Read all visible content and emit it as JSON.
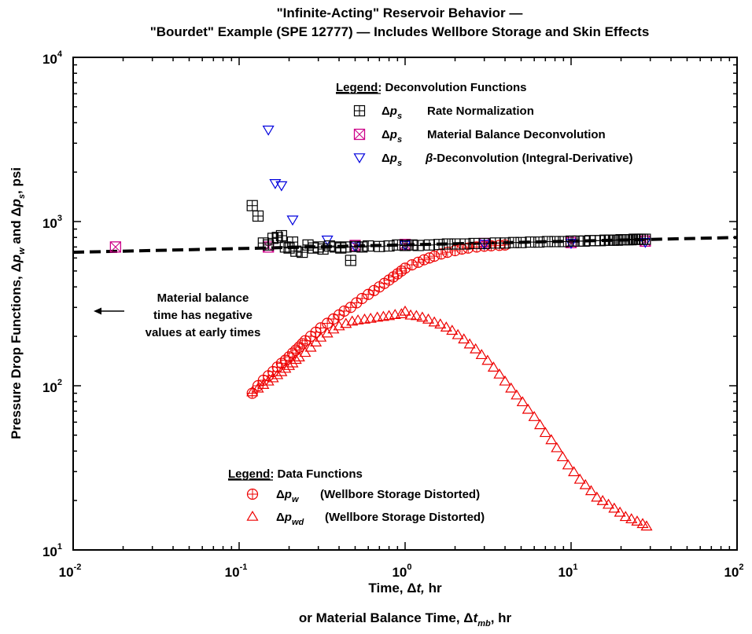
{
  "chart_data": {
    "type": "scatter",
    "title_lines": [
      "\"Infinite-Acting\" Reservoir Behavior —",
      "\"Bourdet\" Example (SPE 12777) — Includes Wellbore Storage and Skin Effects"
    ],
    "xlabel_line1": {
      "before": "Time, ",
      "delta": "Δ",
      "var": "t,",
      "after": " hr"
    },
    "xlabel_line2": {
      "before": "or Material Balance Time,  ",
      "delta": "Δ",
      "var": "t",
      "sub": "mb",
      "after": ", hr"
    },
    "ylabel": {
      "before": "Pressure Drop Functions, ",
      "delta1": "Δ",
      "var1": "p",
      "sub1": "w",
      "mid": " and ",
      "delta2": "Δ",
      "var2": "p",
      "sub2": "s",
      "after": ", psi"
    },
    "x_scale": "log",
    "y_scale": "log",
    "xlim": [
      0.01,
      100
    ],
    "ylim": [
      10,
      10000
    ],
    "x_ticks": [
      {
        "base": "10",
        "exp": "-2"
      },
      {
        "base": "10",
        "exp": "-1"
      },
      {
        "base": "10",
        "exp": "0"
      },
      {
        "base": "10",
        "exp": "1"
      },
      {
        "base": "10",
        "exp": "2"
      }
    ],
    "y_ticks": [
      {
        "base": "10",
        "exp": "1"
      },
      {
        "base": "10",
        "exp": "2"
      },
      {
        "base": "10",
        "exp": "3"
      },
      {
        "base": "10",
        "exp": "4"
      }
    ],
    "grid": false,
    "legend_deconvolution": {
      "heading_underlined": "Legend",
      "heading_rest": ": Deconvolution Functions",
      "entries": [
        {
          "delta": "Δ",
          "var": "p",
          "sub": "s",
          "label": "Rate Normalization",
          "marker": "boxed-plus",
          "color": "#000000"
        },
        {
          "delta": "Δ",
          "var": "p",
          "sub": "s",
          "label": "Material Balance Deconvolution",
          "marker": "boxed-x",
          "color": "#cc0088"
        },
        {
          "delta": "Δ",
          "var": "p",
          "sub": "s",
          "label": "-Deconvolution (Integral-Derivative)",
          "beta": "β",
          "marker": "triangle-down",
          "color": "#0000dd"
        }
      ]
    },
    "legend_data": {
      "heading_underlined": "Legend",
      "heading_rest": ": Data Functions",
      "entries": [
        {
          "delta": "Δ",
          "var": "p",
          "sub": "w",
          "label": "(Wellbore Storage Distorted)",
          "marker": "circle-plus",
          "color": "#ee0000"
        },
        {
          "delta": "Δ",
          "var": "p",
          "sub": "wd",
          "label": "(Wellbore Storage Distorted)",
          "marker": "triangle-up",
          "color": "#ee0000"
        }
      ]
    },
    "annotation": {
      "lines": [
        "Material balance",
        "time has negative",
        "values at early times"
      ]
    },
    "series": [
      {
        "name": "Δp_s Rate Normalization",
        "marker": "boxed-plus",
        "color": "#000000",
        "x": [
          0.12,
          0.13,
          0.14,
          0.15,
          0.16,
          0.17,
          0.18,
          0.19,
          0.2,
          0.21,
          0.22,
          0.24,
          0.26,
          0.28,
          0.3,
          0.32,
          0.35,
          0.38,
          0.41,
          0.44,
          0.47,
          0.5,
          0.55,
          0.6,
          0.7,
          0.8,
          0.9,
          1.0,
          1.1,
          1.2,
          1.4,
          1.6,
          1.8,
          2.0,
          2.3,
          2.6,
          3.0,
          3.5,
          4.0,
          4.5,
          5.0,
          5.7,
          6.4,
          7.2,
          8.0,
          9.0,
          10,
          11,
          12,
          13,
          14,
          15,
          16,
          17,
          18,
          19,
          20,
          21,
          22,
          23,
          24,
          25,
          26,
          27,
          28
        ],
        "y": [
          1250,
          1080,
          740,
          720,
          790,
          800,
          820,
          700,
          690,
          750,
          660,
          650,
          720,
          690,
          700,
          680,
          710,
          700,
          690,
          700,
          580,
          705,
          700,
          710,
          705,
          710,
          720,
          715,
          720,
          715,
          720,
          725,
          730,
          730,
          730,
          735,
          735,
          740,
          740,
          745,
          745,
          750,
          750,
          755,
          755,
          755,
          760,
          760,
          760,
          765,
          765,
          765,
          770,
          770,
          770,
          770,
          775,
          775,
          775,
          775,
          780,
          780,
          780,
          780,
          780
        ]
      },
      {
        "name": "Δp_s Material Balance Deconvolution",
        "marker": "boxed-x",
        "color": "#cc0088",
        "x": [
          0.018,
          0.15,
          0.5,
          1.0,
          3.0,
          10,
          28
        ],
        "y": [
          700,
          700,
          715,
          725,
          735,
          745,
          760
        ]
      },
      {
        "name": "Δp_s β-Deconvolution (Integral-Derivative)",
        "marker": "triangle-down",
        "color": "#0000dd",
        "x": [
          0.15,
          0.165,
          0.18,
          0.21,
          0.34,
          0.5,
          1.0,
          3.0,
          10,
          28
        ],
        "y": [
          3600,
          1700,
          1650,
          1020,
          770,
          700,
          715,
          725,
          735,
          745
        ]
      },
      {
        "name": "Δp_w (Wellbore Storage Distorted)",
        "marker": "circle-plus",
        "color": "#ee0000",
        "x": [
          0.12,
          0.13,
          0.14,
          0.15,
          0.16,
          0.17,
          0.18,
          0.19,
          0.2,
          0.21,
          0.22,
          0.23,
          0.24,
          0.25,
          0.27,
          0.29,
          0.31,
          0.34,
          0.37,
          0.4,
          0.43,
          0.47,
          0.51,
          0.55,
          0.6,
          0.65,
          0.7,
          0.75,
          0.8,
          0.85,
          0.9,
          0.95,
          1.0,
          1.1,
          1.2,
          1.3,
          1.4,
          1.5,
          1.65,
          1.8,
          2.0,
          2.2,
          2.4,
          2.7,
          3.0,
          3.3,
          3.7,
          4.0
        ],
        "y": [
          90,
          100,
          108,
          115,
          122,
          130,
          137,
          143,
          150,
          158,
          165,
          172,
          180,
          188,
          200,
          212,
          225,
          240,
          255,
          270,
          285,
          300,
          320,
          340,
          360,
          380,
          400,
          420,
          440,
          460,
          480,
          500,
          520,
          545,
          565,
          585,
          600,
          615,
          635,
          650,
          665,
          680,
          690,
          700,
          708,
          712,
          716,
          720
        ]
      },
      {
        "name": "Δp_wd (Wellbore Storage Distorted)",
        "marker": "triangle-up",
        "color": "#ee0000",
        "x": [
          0.12,
          0.13,
          0.14,
          0.15,
          0.16,
          0.17,
          0.18,
          0.19,
          0.2,
          0.21,
          0.22,
          0.23,
          0.25,
          0.27,
          0.29,
          0.31,
          0.34,
          0.37,
          0.4,
          0.44,
          0.48,
          0.52,
          0.57,
          0.62,
          0.68,
          0.74,
          0.8,
          0.87,
          0.95,
          1.0,
          1.08,
          1.17,
          1.27,
          1.38,
          1.5,
          1.63,
          1.77,
          1.92,
          2.08,
          2.26,
          2.45,
          2.66,
          2.89,
          3.14,
          3.41,
          3.7,
          4.0,
          4.35,
          4.7,
          5.1,
          5.5,
          6.0,
          6.5,
          7.0,
          7.6,
          8.2,
          8.9,
          9.6,
          10.4,
          11.3,
          12.2,
          13.2,
          14.3,
          15.5,
          16.8,
          18.2,
          19.7,
          21.3,
          23.1,
          25.0,
          27.0,
          28.5
        ],
        "y": [
          92,
          97,
          102,
          107,
          112,
          117,
          122,
          128,
          133,
          138,
          145,
          150,
          160,
          172,
          185,
          198,
          210,
          222,
          232,
          240,
          248,
          252,
          255,
          258,
          262,
          265,
          268,
          272,
          275,
          285,
          270,
          268,
          262,
          255,
          245,
          238,
          228,
          218,
          205,
          193,
          180,
          168,
          155,
          143,
          130,
          118,
          107,
          97,
          88,
          80,
          72,
          65,
          58,
          52,
          47,
          42,
          37,
          33,
          30,
          27,
          25,
          23,
          21,
          20,
          19,
          18,
          17,
          16,
          15.5,
          15,
          14.5,
          14
        ]
      },
      {
        "name": "reference dashed line",
        "style": "dashed",
        "color": "#000000",
        "x": [
          0.01,
          100
        ],
        "y": [
          650,
          800
        ]
      }
    ]
  }
}
